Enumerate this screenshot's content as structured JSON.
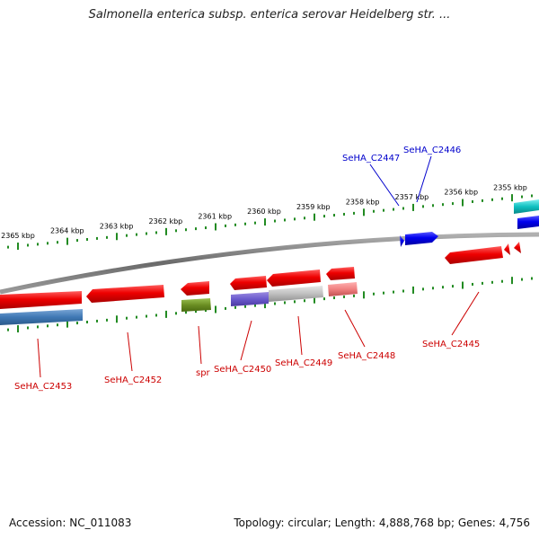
{
  "title": "Salmonella enterica subsp. enterica serovar Heidelberg str. ...",
  "footer": {
    "accession": "Accession: NC_011083",
    "summary": "Topology: circular; Length: 4,888,768 bp; Genes: 4,756"
  },
  "colors": {
    "forward_label": "#0000cc",
    "reverse_label": "#cc0000",
    "tick": "#228b22",
    "backbone": "#808080"
  },
  "ticks": [
    {
      "label": "2365 kbp",
      "pos_kbp": 2365
    },
    {
      "label": "2364 kbp",
      "pos_kbp": 2364
    },
    {
      "label": "2363 kbp",
      "pos_kbp": 2363
    },
    {
      "label": "2362 kbp",
      "pos_kbp": 2362
    },
    {
      "label": "2361 kbp",
      "pos_kbp": 2361
    },
    {
      "label": "2360 kbp",
      "pos_kbp": 2360
    },
    {
      "label": "2359 kbp",
      "pos_kbp": 2359
    },
    {
      "label": "2358 kbp",
      "pos_kbp": 2358
    },
    {
      "label": "2357 kbp",
      "pos_kbp": 2357
    },
    {
      "label": "2356 kbp",
      "pos_kbp": 2356
    },
    {
      "label": "2355 kbp",
      "pos_kbp": 2355
    }
  ],
  "genes_forward": [
    {
      "label": "SeHA_C2447",
      "strand": "+",
      "color": "#0000cc"
    },
    {
      "label": "SeHA_C2446",
      "strand": "+",
      "color": "#0000cc"
    }
  ],
  "genes_reverse": [
    {
      "label": "SeHA_C2453",
      "strand": "-",
      "color": "#cc0000"
    },
    {
      "label": "SeHA_C2452",
      "strand": "-",
      "color": "#cc0000"
    },
    {
      "label": "spr",
      "strand": "-",
      "color": "#cc0000"
    },
    {
      "label": "SeHA_C2450",
      "strand": "-",
      "color": "#cc0000"
    },
    {
      "label": "SeHA_C2449",
      "strand": "-",
      "color": "#cc0000"
    },
    {
      "label": "SeHA_C2448",
      "strand": "-",
      "color": "#cc0000"
    },
    {
      "label": "SeHA_C2445",
      "strand": "-",
      "color": "#cc0000"
    }
  ]
}
